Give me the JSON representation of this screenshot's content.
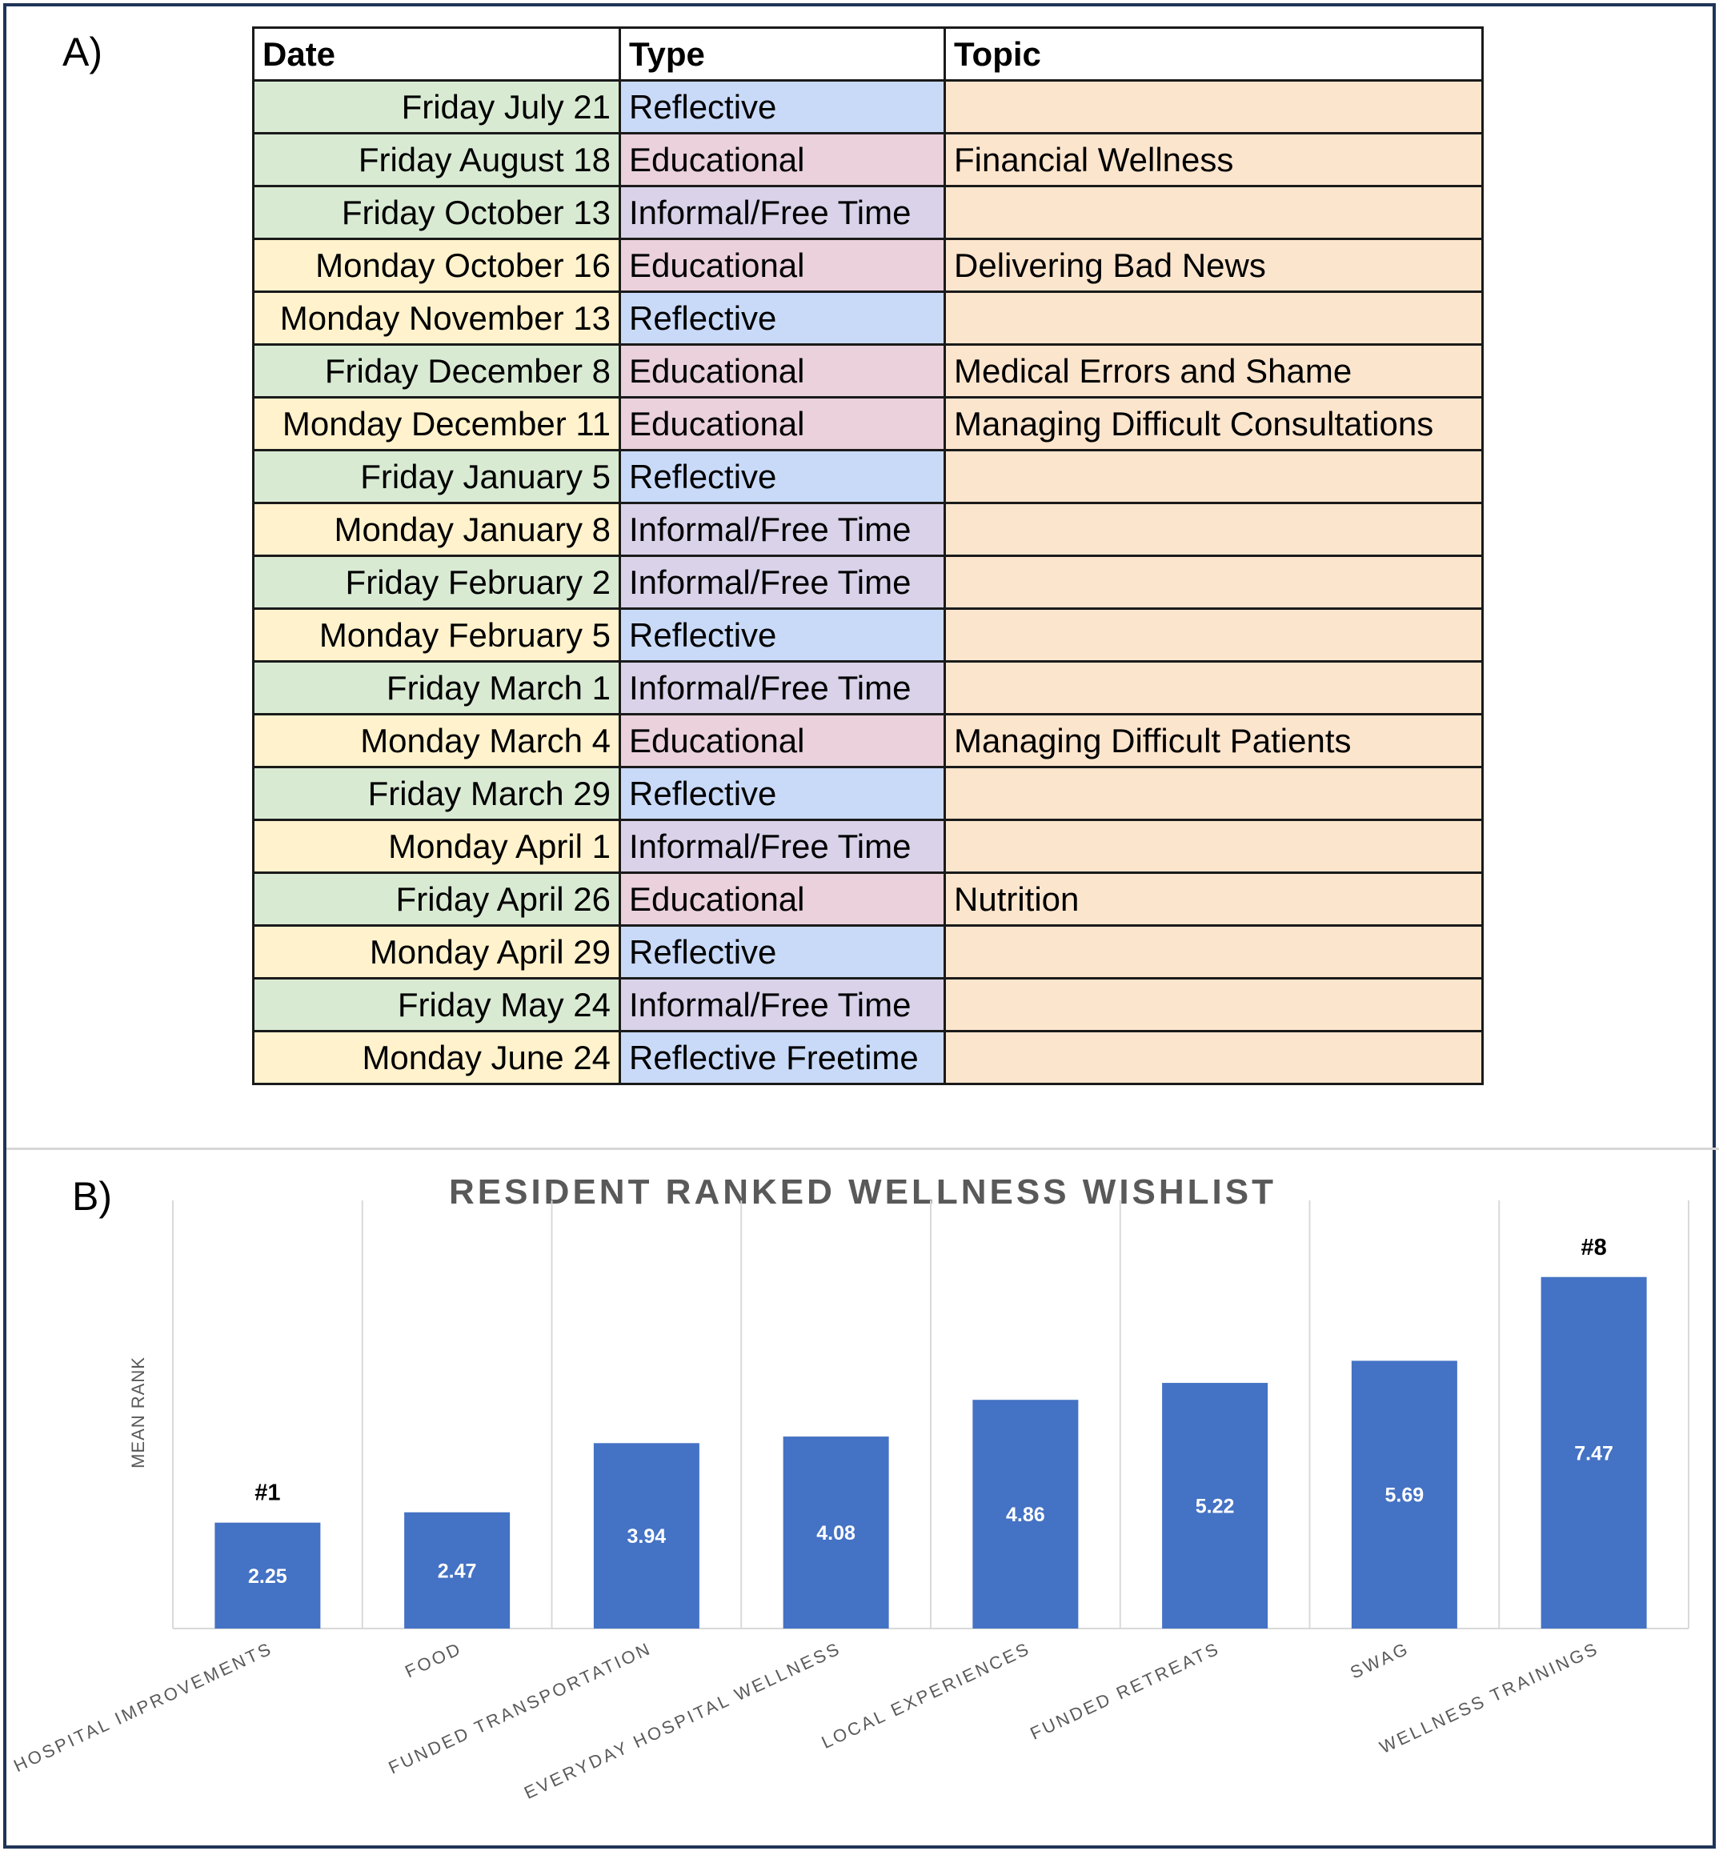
{
  "panel_a": {
    "label": "A)",
    "headers": [
      "Date",
      "Type",
      "Topic"
    ],
    "rows": [
      {
        "date": "Friday July 21",
        "type": "Reflective",
        "topic": ""
      },
      {
        "date": "Friday August 18",
        "type": "Educational",
        "topic": "Financial Wellness"
      },
      {
        "date": "Friday October 13",
        "type": "Informal/Free Time",
        "topic": ""
      },
      {
        "date": "Monday October 16",
        "type": "Educational",
        "topic": "Delivering Bad News"
      },
      {
        "date": "Monday November 13",
        "type": "Reflective",
        "topic": ""
      },
      {
        "date": "Friday December 8",
        "type": "Educational",
        "topic": "Medical Errors and Shame"
      },
      {
        "date": "Monday December 11",
        "type": "Educational",
        "topic": "Managing Difficult Consultations"
      },
      {
        "date": "Friday January 5",
        "type": "Reflective",
        "topic": ""
      },
      {
        "date": "Monday January 8",
        "type": "Informal/Free Time",
        "topic": ""
      },
      {
        "date": "Friday February 2",
        "type": "Informal/Free Time",
        "topic": ""
      },
      {
        "date": "Monday February 5",
        "type": "Reflective",
        "topic": ""
      },
      {
        "date": "Friday March 1",
        "type": "Informal/Free Time",
        "topic": ""
      },
      {
        "date": "Monday March 4",
        "type": "Educational",
        "topic": "Managing Difficult Patients"
      },
      {
        "date": "Friday March 29",
        "type": "Reflective",
        "topic": ""
      },
      {
        "date": "Monday April 1",
        "type": "Informal/Free Time",
        "topic": ""
      },
      {
        "date": "Friday April 26",
        "type": "Educational",
        "topic": "Nutrition"
      },
      {
        "date": "Monday April 29",
        "type": "Reflective",
        "topic": ""
      },
      {
        "date": "Friday May 24",
        "type": "Informal/Free Time",
        "topic": ""
      },
      {
        "date": "Monday June 24",
        "type": "Reflective Freetime",
        "topic": ""
      }
    ]
  },
  "panel_b": {
    "label": "B)"
  },
  "colors": {
    "friday_date": "#d9ead3",
    "monday_date": "#fff2cc",
    "reflective": "#c9daf8",
    "educational": "#ead1dc",
    "informal": "#d9d2e9",
    "topic": "#fce5cd",
    "bar": "#4472c4",
    "frame": "#1f3457"
  },
  "chart_data": {
    "type": "bar",
    "title": "RESIDENT RANKED WELLNESS WISHLIST",
    "xlabel": "",
    "ylabel": "MEAN RANK",
    "categories": [
      "HOSPITAL IMPROVEMENTS",
      "FOOD",
      "FUNDED TRANSPORTATION",
      "EVERYDAY HOSPITAL WELLNESS",
      "LOCAL EXPERIENCES",
      "FUNDED RETREATS",
      "SWAG",
      "WELLNESS TRAININGS"
    ],
    "values": [
      2.25,
      2.47,
      3.94,
      4.08,
      4.86,
      5.22,
      5.69,
      7.47
    ],
    "value_labels": [
      "2.25",
      "2.47",
      "3.94",
      "4.08",
      "4.86",
      "5.22",
      "5.69",
      "7.47"
    ],
    "annotations": [
      {
        "category": "HOSPITAL IMPROVEMENTS",
        "text": "#1"
      },
      {
        "category": "WELLNESS TRAININGS",
        "text": "#8"
      }
    ],
    "ylim": [
      0,
      8
    ],
    "grid": "vertical",
    "legend": "none"
  }
}
